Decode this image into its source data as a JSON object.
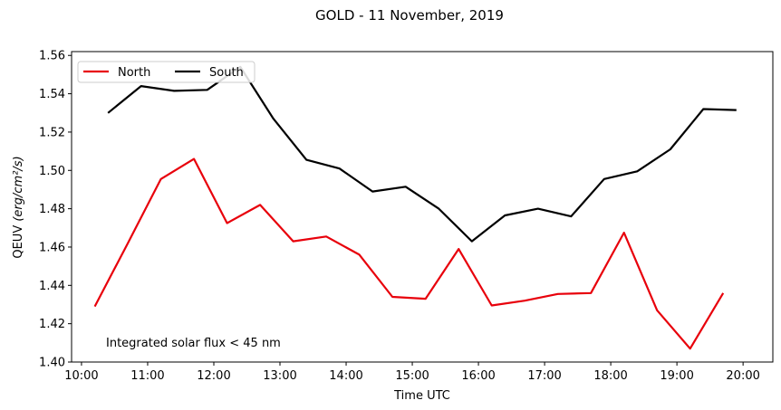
{
  "chart_data": {
    "type": "line",
    "title": "GOLD - 11 November, 2019",
    "xlabel": "Time UTC",
    "ylabel": "QEUV",
    "ylabel_unit": "(erg/cm²/s)",
    "annotation": "Integrated solar flux < 45 nm",
    "xlim": [
      "09:51",
      "20:27"
    ],
    "ylim": [
      1.4,
      1.562
    ],
    "x_ticks": [
      "10:00",
      "11:00",
      "12:00",
      "13:00",
      "14:00",
      "15:00",
      "16:00",
      "17:00",
      "18:00",
      "19:00",
      "20:00"
    ],
    "y_ticks": [
      "1.40",
      "1.42",
      "1.44",
      "1.46",
      "1.48",
      "1.50",
      "1.52",
      "1.54",
      "1.56"
    ],
    "grid": false,
    "legend_position": "top-left",
    "series": [
      {
        "name": "North",
        "color": "#e8000b",
        "x": [
          "10:12",
          "10:42",
          "11:12",
          "11:42",
          "12:12",
          "12:42",
          "13:12",
          "13:42",
          "14:12",
          "14:42",
          "15:12",
          "15:42",
          "16:12",
          "16:42",
          "17:12",
          "17:42",
          "18:12",
          "18:42",
          "19:12",
          "19:42"
        ],
        "y": [
          1.429,
          1.462,
          1.4955,
          1.506,
          1.4725,
          1.482,
          1.463,
          1.4655,
          1.456,
          1.434,
          1.433,
          1.459,
          1.4295,
          1.432,
          1.4355,
          1.436,
          1.4675,
          1.427,
          1.407,
          1.436
        ]
      },
      {
        "name": "South",
        "color": "#000000",
        "x": [
          "10:24",
          "10:54",
          "11:24",
          "11:54",
          "12:24",
          "12:54",
          "13:24",
          "13:54",
          "14:24",
          "14:54",
          "15:24",
          "15:54",
          "16:24",
          "16:54",
          "17:24",
          "17:54",
          "18:24",
          "18:54",
          "19:24",
          "19:54"
        ],
        "y": [
          1.53,
          1.544,
          1.5415,
          1.542,
          1.554,
          1.527,
          1.5055,
          1.501,
          1.489,
          1.4915,
          1.48,
          1.463,
          1.4765,
          1.48,
          1.476,
          1.4955,
          1.4995,
          1.511,
          1.532,
          1.5315
        ]
      }
    ]
  }
}
